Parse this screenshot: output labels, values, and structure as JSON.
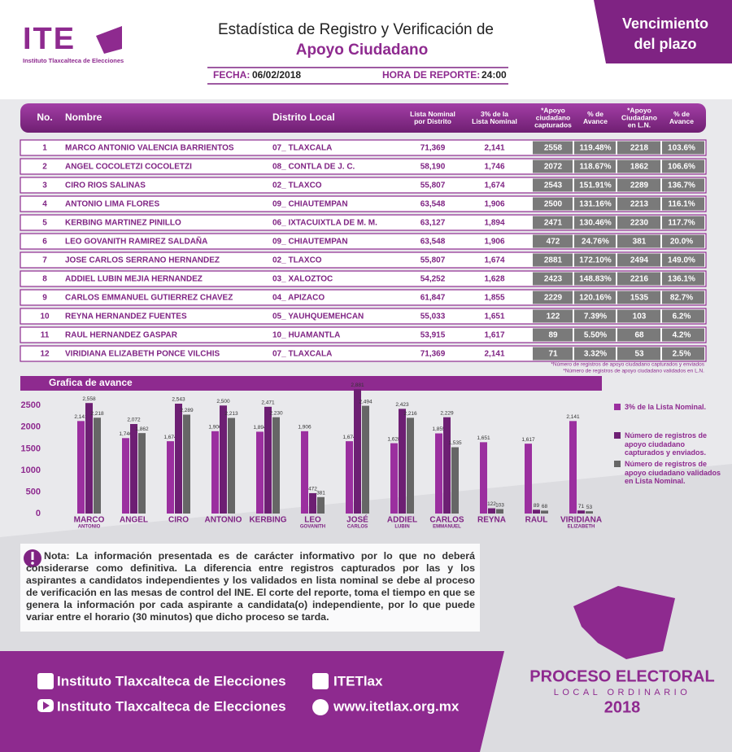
{
  "header": {
    "logo": "ITE",
    "logo_subtitle": "Instituto Tlaxcalteca de Elecciones",
    "title": "Estadística de Registro y Verificación de",
    "subtitle": "Apoyo Ciudadano",
    "date_label": "FECHA:",
    "date": "06/02/2018",
    "time_label": "HORA DE REPORTE:",
    "time": "24:00",
    "badge": [
      "Vencimiento",
      "del plazo"
    ]
  },
  "table": {
    "columns": [
      [
        "No."
      ],
      [
        "Nombre"
      ],
      [
        "Distrito Local"
      ],
      [
        "Lista Nominal",
        "por Distrito"
      ],
      [
        "3% de la",
        "Lista Nominal"
      ],
      [
        "*Apoyo",
        "ciudadano",
        "capturados"
      ],
      [
        "% de",
        "Avance"
      ],
      [
        "*Apoyo",
        "Ciudadano",
        "en L.N."
      ],
      [
        "% de",
        "Avance"
      ]
    ],
    "rows": [
      [
        "1",
        "MARCO ANTONIO VALENCIA BARRIENTOS",
        "07_ TLAXCALA",
        "71,369",
        "2,141",
        "2558",
        "119.48%",
        "2218",
        "103.6%"
      ],
      [
        "2",
        "ANGEL COCOLETZI COCOLETZI",
        "08_ CONTLA DE J. C.",
        "58,190",
        "1,746",
        "2072",
        "118.67%",
        "1862",
        "106.6%"
      ],
      [
        "3",
        "CIRO RIOS SALINAS",
        "02_ TLAXCO",
        "55,807",
        "1,674",
        "2543",
        "151.91%",
        "2289",
        "136.7%"
      ],
      [
        "4",
        "ANTONIO LIMA FLORES",
        "09_ CHIAUTEMPAN",
        "63,548",
        "1,906",
        "2500",
        "131.16%",
        "2213",
        "116.1%"
      ],
      [
        "5",
        "KERBING MARTINEZ PINILLO",
        "06_ IXTACUIXTLA DE M. M.",
        "63,127",
        "1,894",
        "2471",
        "130.46%",
        "2230",
        "117.7%"
      ],
      [
        "6",
        "LEO GOVANITH RAMIREZ SALDAÑA",
        "09_ CHIAUTEMPAN",
        "63,548",
        "1,906",
        "472",
        "24.76%",
        "381",
        "20.0%"
      ],
      [
        "7",
        "JOSE CARLOS SERRANO HERNANDEZ",
        "02_ TLAXCO",
        "55,807",
        "1,674",
        "2881",
        "172.10%",
        "2494",
        "149.0%"
      ],
      [
        "8",
        "ADDIEL LUBIN MEJIA HERNANDEZ",
        "03_ XALOZTOC",
        "54,252",
        "1,628",
        "2423",
        "148.83%",
        "2216",
        "136.1%"
      ],
      [
        "9",
        "CARLOS EMMANUEL GUTIERREZ CHAVEZ",
        "04_ APIZACO",
        "61,847",
        "1,855",
        "2229",
        "120.16%",
        "1535",
        "82.7%"
      ],
      [
        "10",
        "REYNA HERNANDEZ FUENTES",
        "05_ YAUHQUEMEHCAN",
        "55,033",
        "1,651",
        "122",
        "7.39%",
        "103",
        "6.2%"
      ],
      [
        "11",
        "RAUL HERNANDEZ GASPAR",
        "10_ HUAMANTLA",
        "53,915",
        "1,617",
        "89",
        "5.50%",
        "68",
        "4.2%"
      ],
      [
        "12",
        "VIRIDIANA ELIZABETH PONCE VILCHIS",
        "07_ TLAXCALA",
        "71,369",
        "2,141",
        "71",
        "3.32%",
        "53",
        "2.5%"
      ]
    ],
    "footnotes": [
      "*Número de registros de apoyo ciudadano capturados y enviados",
      "*Número de registros de apoyo ciudadano validados en L.N."
    ]
  },
  "chart_data": {
    "type": "bar",
    "title": "Grafica de avance",
    "categories": [
      "MARCO",
      "ANGEL",
      "CIRO",
      "ANTONIO",
      "KERBING",
      "LEO",
      "JOSÉ",
      "ADDIEL",
      "CARLOS",
      "REYNA",
      "RAUL",
      "VIRIDIANA"
    ],
    "category_sublabels": [
      "ANTONIO",
      null,
      null,
      null,
      null,
      "GOVANITH",
      "CARLOS",
      "LUBIN",
      "EMMANUEL",
      null,
      null,
      "ELIZABETH"
    ],
    "series": [
      {
        "name": "3% de la Lista Nominal.",
        "color": "#9b2f9f",
        "values": [
          2141,
          1746,
          1674,
          1906,
          1894,
          1906,
          1674,
          1628,
          1855,
          1651,
          1617,
          2141
        ],
        "value_labels": [
          "2,141",
          "1,746",
          "1,674",
          "1,906",
          "1,894",
          "1,906",
          "1,674",
          "1,628",
          "1,855",
          "1,651",
          "1,617",
          "2,141"
        ]
      },
      {
        "name": "Número de registros de apoyo ciudadano capturados y enviados.",
        "color": "#6d1f73",
        "values": [
          2558,
          2072,
          2543,
          2500,
          2471,
          472,
          2881,
          2423,
          2229,
          122,
          89,
          71
        ],
        "value_labels": [
          "2,558",
          "2,072",
          "2,543",
          "2,500",
          "2,471",
          "472",
          "2,881",
          "2,423",
          "2,229",
          "122",
          "89",
          "71"
        ]
      },
      {
        "name": "Número de registros de apoyo ciudadano validados en Lista Nominal.",
        "color": "#666666",
        "values": [
          2218,
          1862,
          2289,
          2213,
          2230,
          381,
          2494,
          2216,
          1535,
          103,
          68,
          53
        ],
        "value_labels": [
          "2,218",
          "1,862",
          "2,289",
          "2,213",
          "2,230",
          "381",
          "2,494",
          "2,216",
          "1,535",
          "103",
          "68",
          "53"
        ]
      }
    ],
    "ylim": [
      0,
      2750
    ],
    "yticks": [
      0,
      500,
      1000,
      1500,
      2000,
      2500
    ],
    "grid": false,
    "legend": "right"
  },
  "note": {
    "label": "Nota:",
    "text": "La información presentada es de carácter informativo por lo que no deberá considerarse como definitiva. La diferencia entre registros capturados por las y los aspirantes a candidatos independientes y los validados en lista nominal se debe al proceso de verificación en las mesas de control del INE. El corte del reporte, toma el tiempo en que se genera la información por cada aspirante a candidata(o) independiente, por lo que puede variar entre el horario (30 minutos) que dicho proceso se tarda."
  },
  "footer": {
    "links": [
      "Instituto Tlaxcalteca de Elecciones",
      "ITETlax",
      "Instituto Tlaxcalteca de Elecciones",
      "www.itetlax.org.mx"
    ],
    "process": "PROCESO ELECTORAL",
    "process_sub": "LOCAL ORDINARIO",
    "year": "2018"
  }
}
